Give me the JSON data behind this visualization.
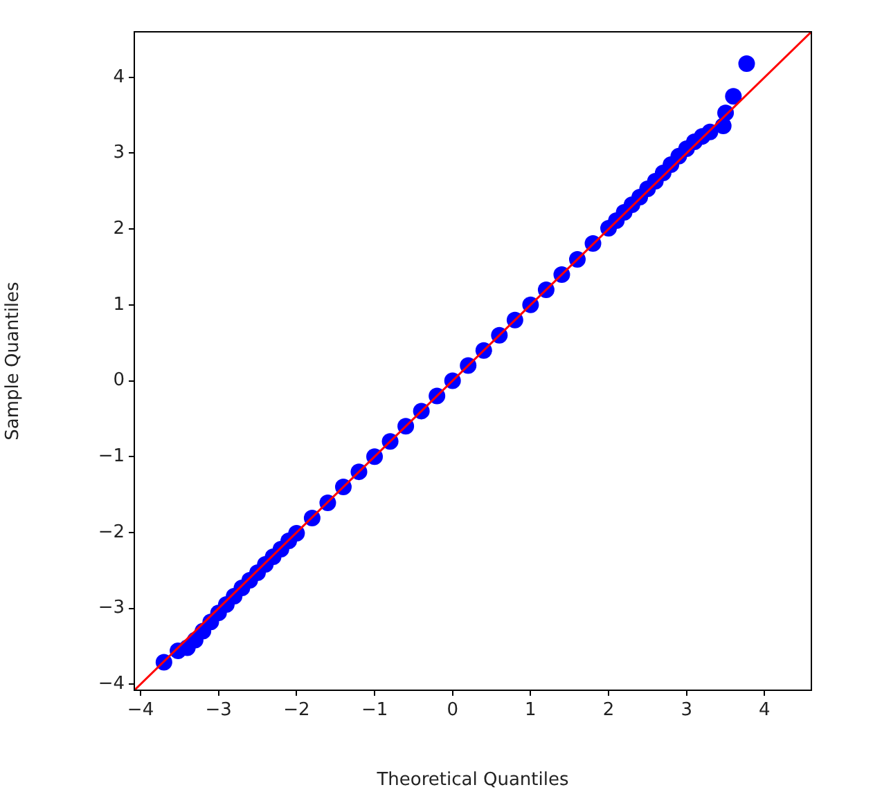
{
  "chart_data": {
    "type": "scatter",
    "xlabel": "Theoretical Quantiles",
    "ylabel": "Sample Quantiles",
    "xlim": [
      -4.08,
      4.6
    ],
    "ylim": [
      -4.08,
      4.6
    ],
    "xticks": [
      {
        "value": -4,
        "label": "−4"
      },
      {
        "value": -3,
        "label": "−3"
      },
      {
        "value": -2,
        "label": "−2"
      },
      {
        "value": -1,
        "label": "−1"
      },
      0,
      1,
      2,
      3,
      4
    ],
    "yticks": [
      {
        "value": -4,
        "label": "−4"
      },
      {
        "value": -3,
        "label": "−3"
      },
      {
        "value": -2,
        "label": "−2"
      },
      {
        "value": -1,
        "label": "−1"
      },
      0,
      1,
      2,
      3,
      4
    ],
    "grid": false,
    "legend": false,
    "marker": "circle",
    "series": [
      {
        "color": "#0000ff",
        "x": [
          -3.7,
          -3.52,
          -3.4,
          -3.3,
          -3.2,
          -3.1,
          -3.0,
          -2.9,
          -2.8,
          -2.7,
          -2.6,
          -2.5,
          -2.4,
          -2.3,
          -2.2,
          -2.1,
          -2.0,
          -1.8,
          -1.6,
          -1.4,
          -1.2,
          -1.0,
          -0.8,
          -0.6,
          -0.4,
          -0.2,
          0.0,
          0.2,
          0.4,
          0.6,
          0.8,
          1.0,
          1.2,
          1.4,
          1.6,
          1.8,
          2.0,
          2.1,
          2.2,
          2.3,
          2.4,
          2.5,
          2.6,
          2.7,
          2.8,
          2.9,
          3.0,
          3.1,
          3.2,
          3.3,
          3.47,
          3.5,
          3.6,
          3.77
        ],
        "values": [
          -3.71,
          -3.56,
          -3.52,
          -3.42,
          -3.3,
          -3.18,
          -3.06,
          -2.95,
          -2.84,
          -2.73,
          -2.63,
          -2.53,
          -2.42,
          -2.32,
          -2.22,
          -2.11,
          -2.01,
          -1.81,
          -1.61,
          -1.4,
          -1.2,
          -1.0,
          -0.8,
          -0.6,
          -0.4,
          -0.2,
          0.0,
          0.2,
          0.4,
          0.6,
          0.8,
          1.0,
          1.2,
          1.4,
          1.6,
          1.81,
          2.01,
          2.11,
          2.22,
          2.32,
          2.42,
          2.53,
          2.63,
          2.74,
          2.85,
          2.96,
          3.06,
          3.15,
          3.22,
          3.28,
          3.36,
          3.53,
          3.75,
          4.18
        ]
      },
      {
        "type": "line",
        "color": "#ff0000",
        "marker": "none",
        "x": [
          -4.08,
          4.6
        ],
        "values": [
          -4.08,
          4.6
        ]
      }
    ]
  }
}
